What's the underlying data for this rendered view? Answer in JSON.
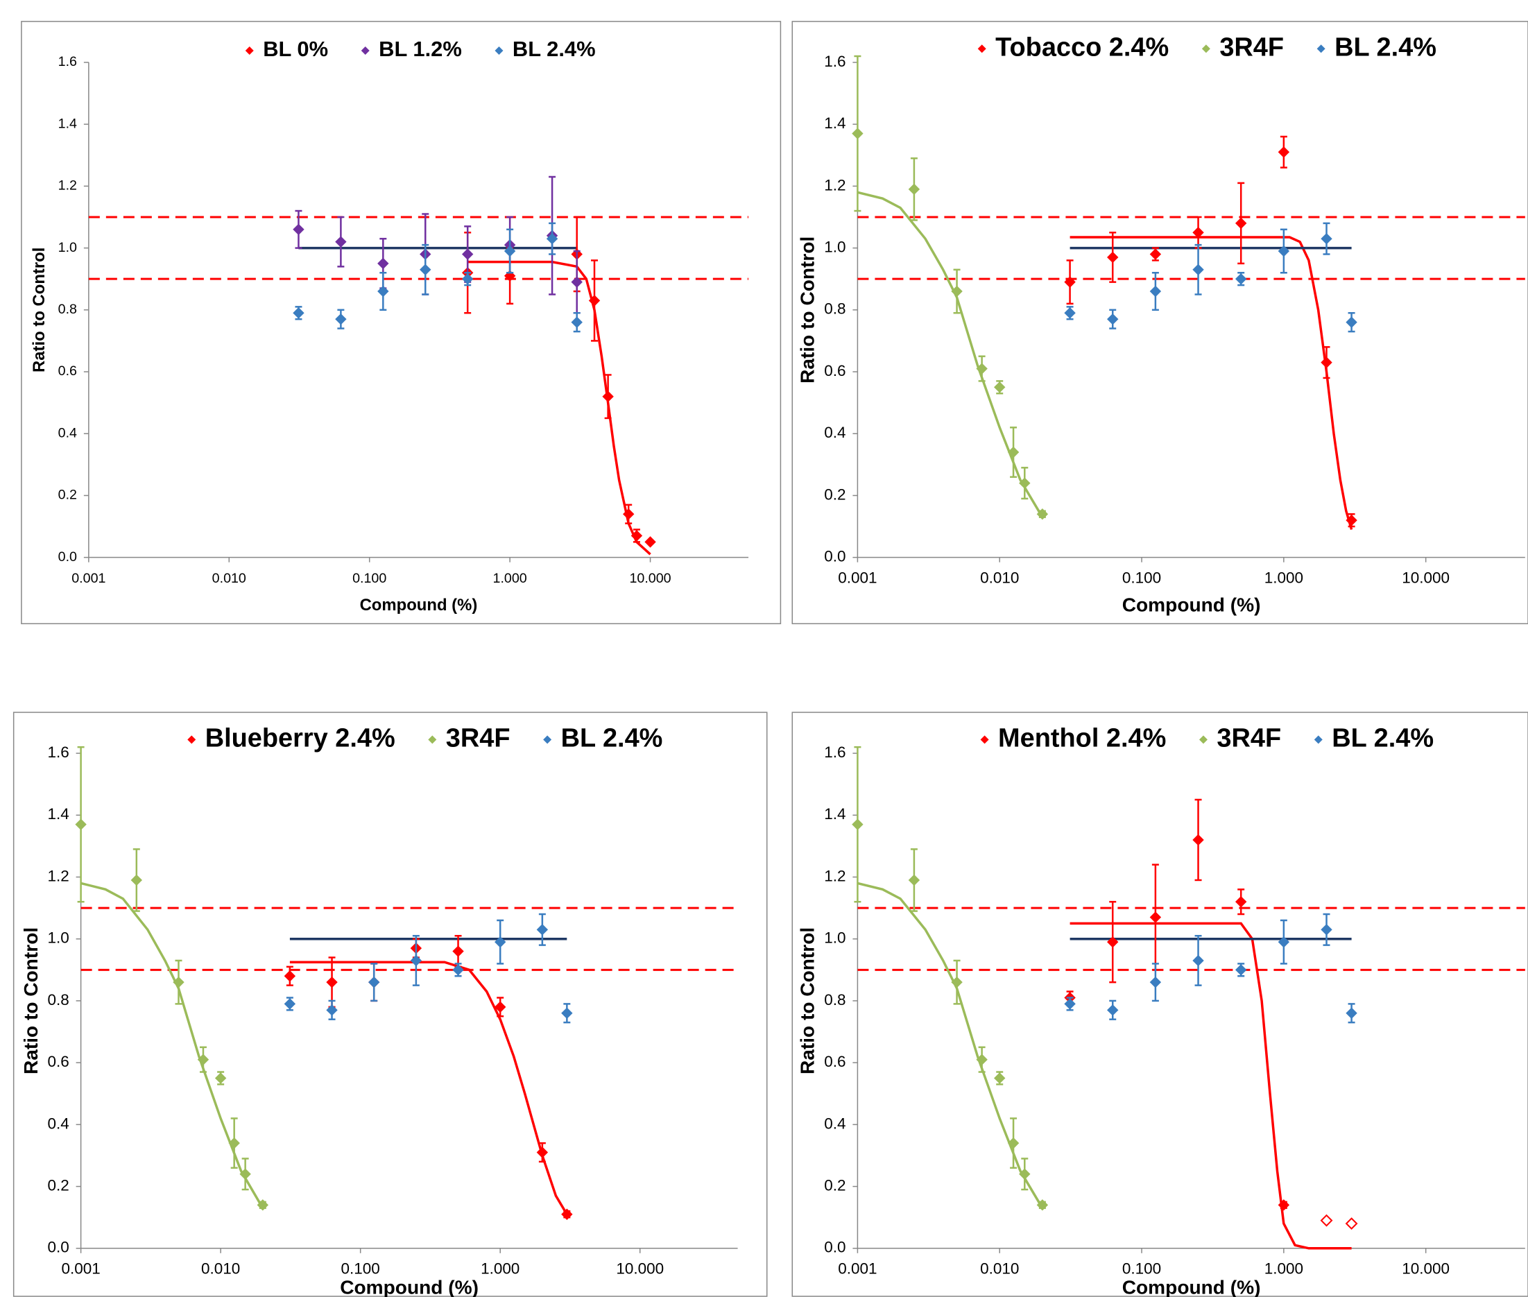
{
  "chart_data": [
    {
      "type": "scatter",
      "x_scale": "log",
      "xlim": [
        0.001,
        50
      ],
      "ylim": [
        0,
        1.6
      ],
      "xticks": [
        {
          "value": 0.001,
          "label": "0.001"
        },
        {
          "value": 0.01,
          "label": "0.010"
        },
        {
          "value": 0.1,
          "label": "0.100"
        },
        {
          "value": 1,
          "label": "1.000"
        },
        {
          "value": 10,
          "label": "10.000"
        }
      ],
      "yticks": [
        {
          "value": 0,
          "label": "0.0"
        },
        {
          "value": 0.2,
          "label": "0.2"
        },
        {
          "value": 0.4,
          "label": "0.4"
        },
        {
          "value": 0.6,
          "label": "0.6"
        },
        {
          "value": 0.8,
          "label": "0.8"
        },
        {
          "value": 1,
          "label": "1.0"
        },
        {
          "value": 1.2,
          "label": "1.2"
        },
        {
          "value": 1.4,
          "label": "1.4"
        },
        {
          "value": 1.6,
          "label": "1.6"
        }
      ],
      "x_title": "Compound (%)",
      "y_title": "Ratio to Control",
      "reference_lines": [
        1.1,
        0.9
      ],
      "reference_color": "#ff0000",
      "series": [
        {
          "name": "BL 0%",
          "color": "#ff0000",
          "x": [
            0.5,
            1,
            3,
            4,
            5,
            7,
            8,
            10
          ],
          "values": [
            0.92,
            0.91,
            0.98,
            0.83,
            0.52,
            0.14,
            0.07,
            0.05
          ],
          "errors": [
            0.13,
            0.09,
            0.12,
            0.13,
            0.07,
            0.03,
            0.02,
            0
          ]
        },
        {
          "name": "BL 1.2%",
          "color": "#7030a0",
          "x": [
            0.03125,
            0.0625,
            0.125,
            0.25,
            0.5,
            1,
            2,
            3
          ],
          "values": [
            1.06,
            1.02,
            0.95,
            0.98,
            0.98,
            1.01,
            1.04,
            0.89
          ],
          "errors": [
            0.06,
            0.08,
            0.08,
            0.13,
            0.09,
            0.09,
            0.19,
            0.1
          ]
        },
        {
          "name": "BL 2.4%",
          "color": "#3a7dc0",
          "x": [
            0.03125,
            0.0625,
            0.125,
            0.25,
            0.5,
            1,
            2,
            3
          ],
          "values": [
            0.79,
            0.77,
            0.86,
            0.93,
            0.9,
            0.99,
            1.03,
            0.76
          ],
          "errors": [
            0.02,
            0.03,
            0.06,
            0.08,
            0.02,
            0.07,
            0.05,
            0.03
          ]
        }
      ],
      "fits": [
        {
          "color": "#1f3864",
          "x": [
            0.03125,
            3
          ],
          "y": [
            1,
            1
          ]
        },
        {
          "color": "#ff0000",
          "x": [
            0.5,
            2,
            3,
            3.5,
            4,
            4.5,
            5,
            5.5,
            6,
            7,
            8,
            10
          ],
          "y": [
            0.955,
            0.955,
            0.94,
            0.9,
            0.8,
            0.65,
            0.5,
            0.36,
            0.25,
            0.11,
            0.05,
            0.01
          ]
        }
      ]
    },
    {
      "type": "scatter",
      "x_scale": "log",
      "xlim": [
        0.001,
        50
      ],
      "ylim": [
        0,
        1.6
      ],
      "xticks": [
        {
          "value": 0.001,
          "label": "0.001"
        },
        {
          "value": 0.01,
          "label": "0.010"
        },
        {
          "value": 0.1,
          "label": "0.100"
        },
        {
          "value": 1,
          "label": "1.000"
        },
        {
          "value": 10,
          "label": "10.000"
        }
      ],
      "yticks": [
        {
          "value": 0,
          "label": "0.0"
        },
        {
          "value": 0.2,
          "label": "0.2"
        },
        {
          "value": 0.4,
          "label": "0.4"
        },
        {
          "value": 0.6,
          "label": "0.6"
        },
        {
          "value": 0.8,
          "label": "0.8"
        },
        {
          "value": 1,
          "label": "1.0"
        },
        {
          "value": 1.2,
          "label": "1.2"
        },
        {
          "value": 1.4,
          "label": "1.4"
        },
        {
          "value": 1.6,
          "label": "1.6"
        }
      ],
      "x_title": "Compound (%)",
      "y_title": "Ratio to Control",
      "reference_lines": [
        1.1,
        0.9
      ],
      "reference_color": "#ff0000",
      "series": [
        {
          "name": "Tobacco 2.4%",
          "color": "#ff0000",
          "x": [
            0.03125,
            0.0625,
            0.125,
            0.25,
            0.5,
            1,
            2,
            3
          ],
          "values": [
            0.89,
            0.97,
            0.98,
            1.05,
            1.08,
            1.31,
            0.63,
            0.12
          ],
          "errors": [
            0.07,
            0.08,
            0.02,
            0.05,
            0.13,
            0.05,
            0.05,
            0.02
          ]
        },
        {
          "name": "3R4F",
          "color": "#9bbb59",
          "x": [
            0.001,
            0.0025,
            0.005,
            0.0075,
            0.01,
            0.0125,
            0.015,
            0.02
          ],
          "values": [
            1.37,
            1.19,
            0.86,
            0.61,
            0.55,
            0.34,
            0.24,
            0.14
          ],
          "errors": [
            0.25,
            0.1,
            0.07,
            0.04,
            0.02,
            0.08,
            0.05,
            0.01
          ]
        },
        {
          "name": "BL 2.4%",
          "color": "#3a7dc0",
          "x": [
            0.03125,
            0.0625,
            0.125,
            0.25,
            0.5,
            1,
            2,
            3
          ],
          "values": [
            0.79,
            0.77,
            0.86,
            0.93,
            0.9,
            0.99,
            1.03,
            0.76
          ],
          "errors": [
            0.02,
            0.03,
            0.06,
            0.08,
            0.02,
            0.07,
            0.05,
            0.03
          ]
        }
      ],
      "fits": [
        {
          "color": "#9bbb59",
          "x": [
            0.001,
            0.0015,
            0.002,
            0.003,
            0.004,
            0.005,
            0.007,
            0.01,
            0.014,
            0.02
          ],
          "y": [
            1.18,
            1.16,
            1.13,
            1.03,
            0.93,
            0.84,
            0.62,
            0.42,
            0.25,
            0.13
          ]
        },
        {
          "color": "#ff0000",
          "x": [
            0.03125,
            1.1,
            1.3,
            1.5,
            1.75,
            2,
            2.25,
            2.5,
            2.75,
            3
          ],
          "y": [
            1.035,
            1.035,
            1.02,
            0.96,
            0.8,
            0.6,
            0.4,
            0.25,
            0.15,
            0.09
          ]
        },
        {
          "color": "#1f3864",
          "x": [
            0.03125,
            3
          ],
          "y": [
            1,
            1
          ]
        }
      ]
    },
    {
      "type": "scatter",
      "x_scale": "log",
      "xlim": [
        0.001,
        50
      ],
      "ylim": [
        0,
        1.6
      ],
      "xticks": [
        {
          "value": 0.001,
          "label": "0.001"
        },
        {
          "value": 0.01,
          "label": "0.010"
        },
        {
          "value": 0.1,
          "label": "0.100"
        },
        {
          "value": 1,
          "label": "1.000"
        },
        {
          "value": 10,
          "label": "10.000"
        }
      ],
      "yticks": [
        {
          "value": 0,
          "label": "0.0"
        },
        {
          "value": 0.2,
          "label": "0.2"
        },
        {
          "value": 0.4,
          "label": "0.4"
        },
        {
          "value": 0.6,
          "label": "0.6"
        },
        {
          "value": 0.8,
          "label": "0.8"
        },
        {
          "value": 1,
          "label": "1.0"
        },
        {
          "value": 1.2,
          "label": "1.2"
        },
        {
          "value": 1.4,
          "label": "1.4"
        },
        {
          "value": 1.6,
          "label": "1.6"
        }
      ],
      "x_title": "Compound (%)",
      "y_title": "Ratio to Control",
      "reference_lines": [
        1.1,
        0.9
      ],
      "reference_color": "#ff0000",
      "series": [
        {
          "name": "Blueberry 2.4%",
          "color": "#ff0000",
          "x": [
            0.03125,
            0.0625,
            0.125,
            0.25,
            0.5,
            1,
            2,
            3
          ],
          "values": [
            0.88,
            0.86,
            0.86,
            0.97,
            0.96,
            0.78,
            0.31,
            0.11
          ],
          "errors": [
            0.03,
            0.08,
            0.06,
            0.03,
            0.05,
            0.03,
            0.03,
            0.01
          ]
        },
        {
          "name": "3R4F",
          "color": "#9bbb59",
          "x": [
            0.001,
            0.0025,
            0.005,
            0.0075,
            0.01,
            0.0125,
            0.015,
            0.02
          ],
          "values": [
            1.37,
            1.19,
            0.86,
            0.61,
            0.55,
            0.34,
            0.24,
            0.14
          ],
          "errors": [
            0.25,
            0.1,
            0.07,
            0.04,
            0.02,
            0.08,
            0.05,
            0.01
          ]
        },
        {
          "name": "BL 2.4%",
          "color": "#3a7dc0",
          "x": [
            0.03125,
            0.0625,
            0.125,
            0.25,
            0.5,
            1,
            2,
            3
          ],
          "values": [
            0.79,
            0.77,
            0.86,
            0.93,
            0.9,
            0.99,
            1.03,
            0.76
          ],
          "errors": [
            0.02,
            0.03,
            0.06,
            0.08,
            0.02,
            0.07,
            0.05,
            0.03
          ]
        }
      ],
      "fits": [
        {
          "color": "#9bbb59",
          "x": [
            0.001,
            0.0015,
            0.002,
            0.003,
            0.004,
            0.005,
            0.007,
            0.01,
            0.014,
            0.02
          ],
          "y": [
            1.18,
            1.16,
            1.13,
            1.03,
            0.93,
            0.84,
            0.62,
            0.42,
            0.25,
            0.13
          ]
        },
        {
          "color": "#ff0000",
          "x": [
            0.03125,
            0.4,
            0.6,
            0.8,
            1,
            1.25,
            1.5,
            2,
            2.5,
            3
          ],
          "y": [
            0.925,
            0.925,
            0.9,
            0.83,
            0.74,
            0.62,
            0.5,
            0.3,
            0.17,
            0.11
          ]
        },
        {
          "color": "#1f3864",
          "x": [
            0.03125,
            3
          ],
          "y": [
            1,
            1
          ]
        }
      ]
    },
    {
      "type": "scatter",
      "x_scale": "log",
      "xlim": [
        0.001,
        50
      ],
      "ylim": [
        0,
        1.6
      ],
      "xticks": [
        {
          "value": 0.001,
          "label": "0.001"
        },
        {
          "value": 0.01,
          "label": "0.010"
        },
        {
          "value": 0.1,
          "label": "0.100"
        },
        {
          "value": 1,
          "label": "1.000"
        },
        {
          "value": 10,
          "label": "10.000"
        }
      ],
      "yticks": [
        {
          "value": 0,
          "label": "0.0"
        },
        {
          "value": 0.2,
          "label": "0.2"
        },
        {
          "value": 0.4,
          "label": "0.4"
        },
        {
          "value": 0.6,
          "label": "0.6"
        },
        {
          "value": 0.8,
          "label": "0.8"
        },
        {
          "value": 1,
          "label": "1.0"
        },
        {
          "value": 1.2,
          "label": "1.2"
        },
        {
          "value": 1.4,
          "label": "1.4"
        },
        {
          "value": 1.6,
          "label": "1.6"
        }
      ],
      "x_title": "Compound (%)",
      "y_title": "Ratio to Control",
      "reference_lines": [
        1.1,
        0.9
      ],
      "reference_color": "#ff0000",
      "series": [
        {
          "name": "Menthol 2.4%",
          "color": "#ff0000",
          "x": [
            0.03125,
            0.0625,
            0.125,
            0.25,
            0.5,
            1,
            2,
            3
          ],
          "values": [
            0.81,
            0.99,
            1.07,
            1.32,
            1.12,
            0.14,
            0.09,
            0.08
          ],
          "errors": [
            0.02,
            0.13,
            0.17,
            0.13,
            0.04,
            0.01,
            0,
            0
          ],
          "open": [
            false,
            false,
            false,
            false,
            false,
            false,
            true,
            true
          ]
        },
        {
          "name": "3R4F",
          "color": "#9bbb59",
          "x": [
            0.001,
            0.0025,
            0.005,
            0.0075,
            0.01,
            0.0125,
            0.015,
            0.02
          ],
          "values": [
            1.37,
            1.19,
            0.86,
            0.61,
            0.55,
            0.34,
            0.24,
            0.14
          ],
          "errors": [
            0.25,
            0.1,
            0.07,
            0.04,
            0.02,
            0.08,
            0.05,
            0.01
          ]
        },
        {
          "name": "BL 2.4%",
          "color": "#3a7dc0",
          "x": [
            0.03125,
            0.0625,
            0.125,
            0.25,
            0.5,
            1,
            2,
            3
          ],
          "values": [
            0.79,
            0.77,
            0.86,
            0.93,
            0.9,
            0.99,
            1.03,
            0.76
          ],
          "errors": [
            0.02,
            0.03,
            0.06,
            0.08,
            0.02,
            0.07,
            0.05,
            0.03
          ]
        }
      ],
      "fits": [
        {
          "color": "#9bbb59",
          "x": [
            0.001,
            0.0015,
            0.002,
            0.003,
            0.004,
            0.005,
            0.007,
            0.01,
            0.014,
            0.02
          ],
          "y": [
            1.18,
            1.16,
            1.13,
            1.03,
            0.93,
            0.84,
            0.62,
            0.42,
            0.25,
            0.13
          ]
        },
        {
          "color": "#ff0000",
          "x": [
            0.03125,
            0.5,
            0.6,
            0.7,
            0.8,
            0.9,
            1,
            1.2,
            1.5,
            3
          ],
          "y": [
            1.05,
            1.05,
            1.0,
            0.8,
            0.5,
            0.25,
            0.08,
            0.01,
            0,
            0
          ]
        },
        {
          "color": "#1f3864",
          "x": [
            0.03125,
            3
          ],
          "y": [
            1,
            1
          ]
        }
      ]
    }
  ]
}
